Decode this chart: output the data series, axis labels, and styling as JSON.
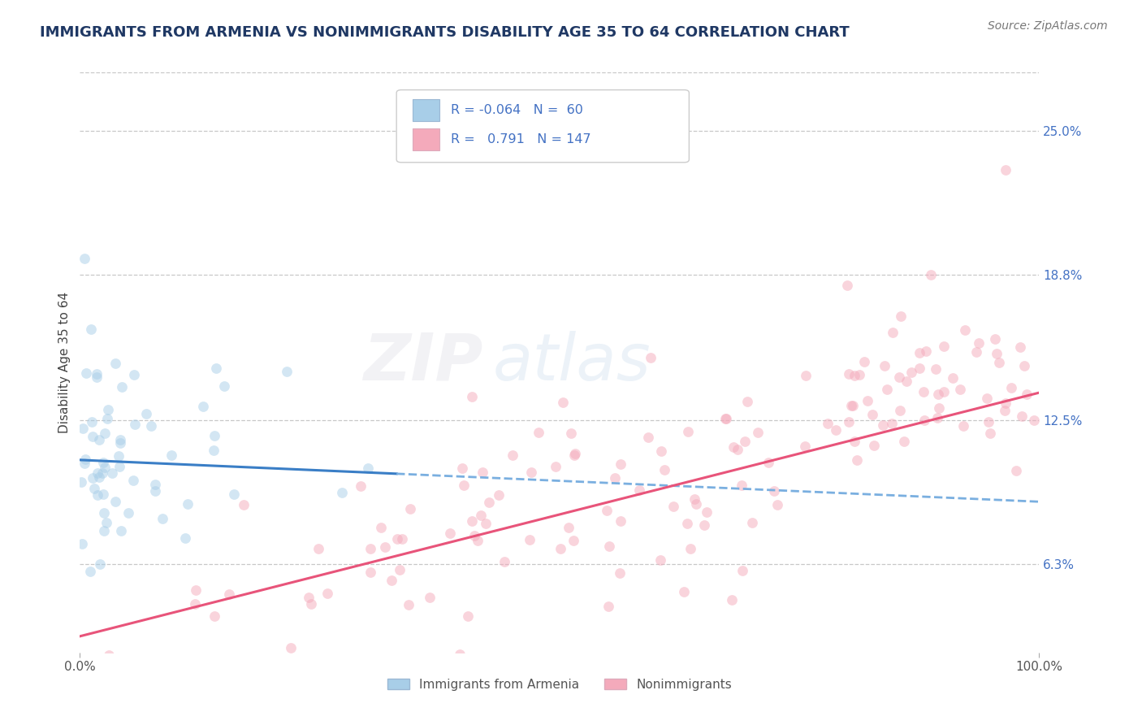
{
  "title": "IMMIGRANTS FROM ARMENIA VS NONIMMIGRANTS DISABILITY AGE 35 TO 64 CORRELATION CHART",
  "source": "Source: ZipAtlas.com",
  "ylabel": "Disability Age 35 to 64",
  "watermark_zip": "ZIP",
  "watermark_atlas": "atlas",
  "legend_label_1": "Immigrants from Armenia",
  "legend_label_2": "Nonimmigrants",
  "R1": -0.064,
  "N1": 60,
  "R2": 0.791,
  "N2": 147,
  "color1": "#A8CEE8",
  "color2": "#F4AABB",
  "trendline1_solid_color": "#3A7EC6",
  "trendline1_dash_color": "#7AAFE0",
  "trendline2_color": "#E8547A",
  "background_color": "#FFFFFF",
  "xmin": 0.0,
  "xmax": 1.0,
  "ymin": 0.025,
  "ymax": 0.275,
  "yticks": [
    0.063,
    0.125,
    0.188,
    0.25
  ],
  "ytick_labels": [
    "6.3%",
    "12.5%",
    "18.8%",
    "25.0%"
  ],
  "title_fontsize": 13,
  "axis_label_fontsize": 11,
  "tick_fontsize": 11,
  "source_fontsize": 10,
  "watermark_fontsize_zip": 58,
  "watermark_fontsize_atlas": 58,
  "watermark_alpha": 0.13,
  "dot_size": 85,
  "dot_alpha": 0.5,
  "grid_color": "#BBBBBB",
  "grid_alpha": 0.8,
  "legend_text_color": "#4472C4",
  "ytick_color": "#4472C4",
  "xtick_color": "#555555"
}
